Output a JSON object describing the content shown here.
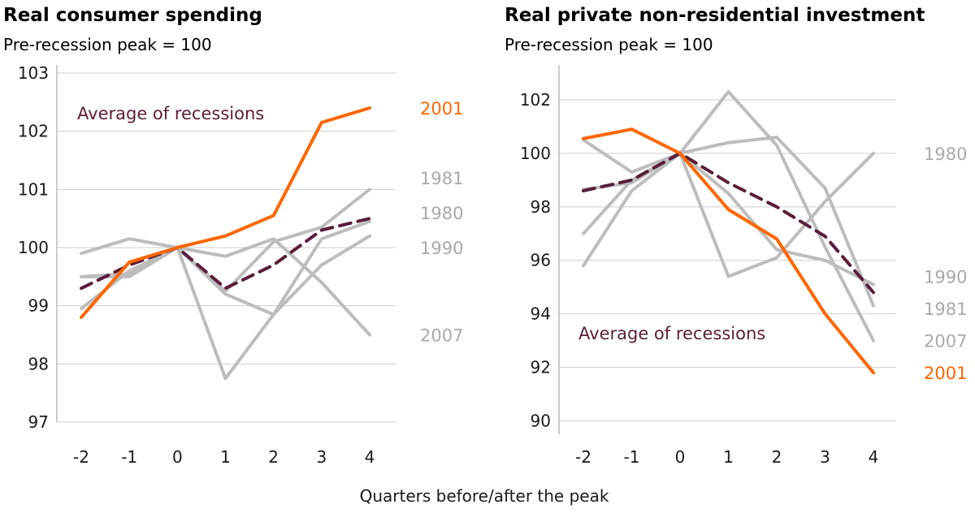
{
  "figure": {
    "xlabel": "Quarters before/after the peak"
  },
  "colors": {
    "highlight": "#ff6600",
    "average": "#5a1e3a",
    "others": "#bdbdbd"
  },
  "chart_data": [
    {
      "type": "line",
      "title": "Real consumer spending",
      "subtitle": "Pre-recession peak = 100",
      "x": [
        -2,
        -1,
        0,
        1,
        2,
        3,
        4
      ],
      "ylim": [
        97,
        103
      ],
      "yticks": [
        97,
        98,
        99,
        100,
        101,
        102,
        103
      ],
      "grid": true,
      "annotation": "Average of recessions",
      "series": [
        {
          "name": "1981",
          "values": [
            99.5,
            99.5,
            100.0,
            99.2,
            98.85,
            99.7,
            100.2
          ],
          "style": "others"
        },
        {
          "name": "1980",
          "values": [
            99.9,
            100.15,
            100.0,
            99.85,
            100.15,
            99.4,
            98.5
          ],
          "style": "others"
        },
        {
          "name": "1990",
          "values": [
            99.5,
            99.55,
            100.0,
            97.75,
            98.85,
            100.15,
            100.45
          ],
          "style": "others"
        },
        {
          "name": "2007",
          "values": [
            98.95,
            99.6,
            100.0,
            99.25,
            100.1,
            100.35,
            101.0
          ],
          "style": "others"
        },
        {
          "name": "",
          "values": [
            99.3,
            99.7,
            100.0,
            99.3,
            99.7,
            100.3,
            100.5
          ],
          "style": "average"
        },
        {
          "name": "2001",
          "values": [
            98.8,
            99.75,
            100.0,
            100.2,
            100.55,
            102.15,
            102.4
          ],
          "style": "highlight"
        }
      ],
      "labels": [
        {
          "text": "2001",
          "y": 102.4,
          "style": "highlight"
        },
        {
          "text": "1981",
          "y": 101.2,
          "style": "others"
        },
        {
          "text": "1980",
          "y": 100.6,
          "style": "others"
        },
        {
          "text": "1990",
          "y": 100.0,
          "style": "others"
        },
        {
          "text": "2007",
          "y": 98.5,
          "style": "others"
        }
      ]
    },
    {
      "type": "line",
      "title": "Real private non-residential investment",
      "subtitle": "Pre-recession peak = 100",
      "x": [
        -2,
        -1,
        0,
        1,
        2,
        3,
        4
      ],
      "ylim": [
        89.5,
        103
      ],
      "yticks": [
        90,
        92,
        94,
        96,
        98,
        100,
        102
      ],
      "grid": true,
      "annotation": "Average of recessions",
      "series": [
        {
          "name": "1980",
          "values": [
            98.65,
            98.9,
            100.0,
            102.3,
            100.3,
            96.5,
            93.0
          ],
          "style": "others"
        },
        {
          "name": "1990",
          "values": [
            100.5,
            99.3,
            100.0,
            95.4,
            96.1,
            98.2,
            100.0
          ],
          "style": "others"
        },
        {
          "name": "1981",
          "values": [
            95.8,
            98.6,
            100.0,
            100.4,
            100.6,
            98.7,
            94.3
          ],
          "style": "others"
        },
        {
          "name": "2007",
          "values": [
            97.0,
            99.0,
            100.0,
            98.5,
            96.4,
            96.0,
            95.1
          ],
          "style": "others"
        },
        {
          "name": "",
          "values": [
            98.6,
            99.0,
            100.0,
            98.9,
            98.0,
            96.9,
            94.8
          ],
          "style": "average"
        },
        {
          "name": "2001",
          "values": [
            100.55,
            100.9,
            100.0,
            97.9,
            96.8,
            94.0,
            91.8
          ],
          "style": "highlight"
        }
      ],
      "labels": [
        {
          "text": "1980",
          "y": 100.0,
          "style": "others"
        },
        {
          "text": "1990",
          "y": 95.4,
          "style": "others"
        },
        {
          "text": "1981",
          "y": 94.2,
          "style": "others"
        },
        {
          "text": "2007",
          "y": 93.0,
          "style": "others"
        },
        {
          "text": "2001",
          "y": 91.8,
          "style": "highlight"
        }
      ]
    }
  ]
}
